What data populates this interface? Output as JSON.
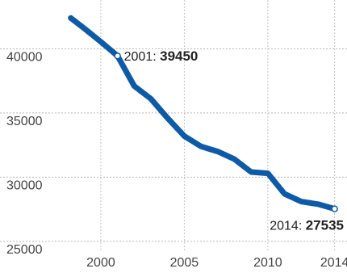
{
  "chart_data": {
    "type": "line",
    "title": "",
    "xlabel": "",
    "ylabel": "",
    "x_ticks": [
      "2000",
      "2005",
      "2010",
      "2014"
    ],
    "y_ticks": [
      "25000",
      "30000",
      "35000",
      "40000"
    ],
    "xlim": [
      1997.2,
      2014.5
    ],
    "ylim": [
      24300,
      43300
    ],
    "grid": true,
    "series": [
      {
        "color": "#0d5ba8",
        "x": [
          1998.2,
          1999.0,
          2000.0,
          2001.0,
          2002.0,
          2003.0,
          2004.0,
          2005.0,
          2006.0,
          2007.0,
          2008.0,
          2009.0,
          2010.0,
          2011.0,
          2012.0,
          2013.0,
          2014.0
        ],
        "y": [
          42400,
          41600,
          40550,
          39450,
          37100,
          36100,
          34600,
          33200,
          32400,
          32000,
          31400,
          30400,
          30300,
          28700,
          28100,
          27900,
          27535
        ]
      }
    ],
    "annotations": [
      {
        "x": 2001,
        "y": 39450,
        "label": "2001:",
        "value": "39450"
      },
      {
        "x": 2014,
        "y": 27535,
        "label": "2014:",
        "value": "27535"
      }
    ]
  }
}
